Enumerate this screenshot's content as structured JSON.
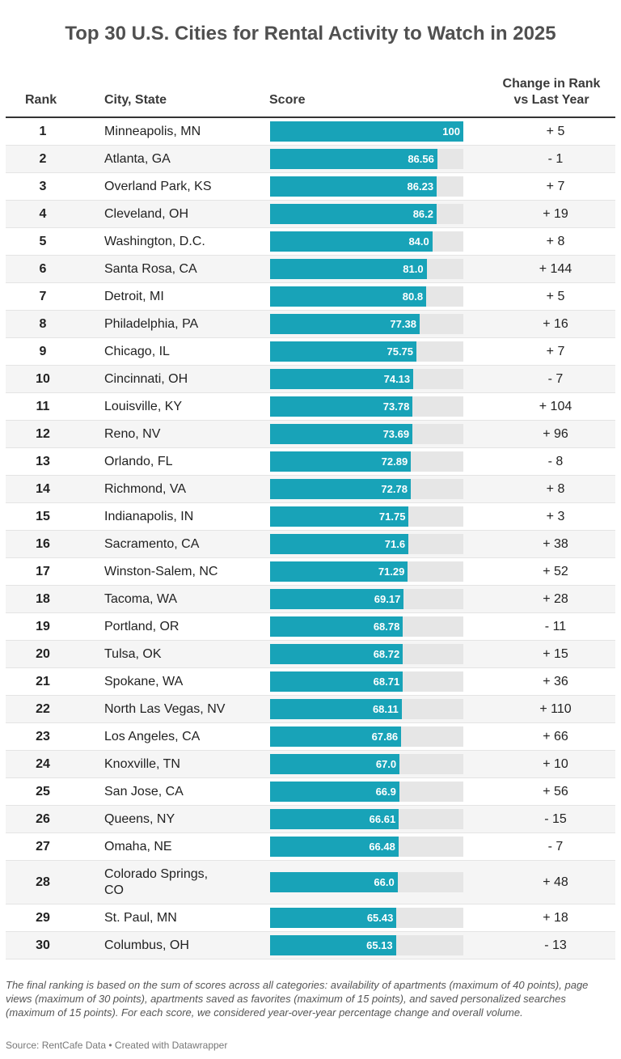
{
  "title": "Top 30 U.S. Cities for Rental Activity to Watch in 2025",
  "headers": {
    "rank": "Rank",
    "city": "City, State",
    "score": "Score",
    "change_line1": "Change in Rank",
    "change_line2": "vs Last Year"
  },
  "rows": [
    {
      "rank": "1",
      "city": "Minneapolis, MN",
      "score": 100,
      "score_label": "100",
      "change": "+ 5"
    },
    {
      "rank": "2",
      "city": "Atlanta, GA",
      "score": 86.56,
      "score_label": "86.56",
      "change": "- 1"
    },
    {
      "rank": "3",
      "city": "Overland Park, KS",
      "score": 86.23,
      "score_label": "86.23",
      "change": "+ 7"
    },
    {
      "rank": "4",
      "city": "Cleveland, OH",
      "score": 86.2,
      "score_label": "86.2",
      "change": "+ 19"
    },
    {
      "rank": "5",
      "city": "Washington, D.C.",
      "score": 84.0,
      "score_label": "84.0",
      "change": "+ 8"
    },
    {
      "rank": "6",
      "city": "Santa Rosa, CA",
      "score": 81.0,
      "score_label": "81.0",
      "change": "+ 144"
    },
    {
      "rank": "7",
      "city": "Detroit, MI",
      "score": 80.8,
      "score_label": "80.8",
      "change": "+ 5"
    },
    {
      "rank": "8",
      "city": "Philadelphia, PA",
      "score": 77.38,
      "score_label": "77.38",
      "change": "+ 16"
    },
    {
      "rank": "9",
      "city": "Chicago, IL",
      "score": 75.75,
      "score_label": "75.75",
      "change": "+ 7"
    },
    {
      "rank": "10",
      "city": "Cincinnati, OH",
      "score": 74.13,
      "score_label": "74.13",
      "change": "- 7"
    },
    {
      "rank": "11",
      "city": "Louisville, KY",
      "score": 73.78,
      "score_label": "73.78",
      "change": "+ 104"
    },
    {
      "rank": "12",
      "city": "Reno, NV",
      "score": 73.69,
      "score_label": "73.69",
      "change": "+ 96"
    },
    {
      "rank": "13",
      "city": "Orlando, FL",
      "score": 72.89,
      "score_label": "72.89",
      "change": "- 8"
    },
    {
      "rank": "14",
      "city": "Richmond, VA",
      "score": 72.78,
      "score_label": "72.78",
      "change": "+ 8"
    },
    {
      "rank": "15",
      "city": "Indianapolis, IN",
      "score": 71.75,
      "score_label": "71.75",
      "change": "+ 3"
    },
    {
      "rank": "16",
      "city": "Sacramento, CA",
      "score": 71.6,
      "score_label": "71.6",
      "change": "+ 38"
    },
    {
      "rank": "17",
      "city": "Winston-Salem, NC",
      "score": 71.29,
      "score_label": "71.29",
      "change": "+ 52"
    },
    {
      "rank": "18",
      "city": "Tacoma, WA",
      "score": 69.17,
      "score_label": "69.17",
      "change": "+ 28"
    },
    {
      "rank": "19",
      "city": "Portland, OR",
      "score": 68.78,
      "score_label": "68.78",
      "change": "- 11"
    },
    {
      "rank": "20",
      "city": "Tulsa, OK",
      "score": 68.72,
      "score_label": "68.72",
      "change": "+ 15"
    },
    {
      "rank": "21",
      "city": "Spokane, WA",
      "score": 68.71,
      "score_label": "68.71",
      "change": "+ 36"
    },
    {
      "rank": "22",
      "city": "North Las Vegas, NV",
      "score": 68.11,
      "score_label": "68.11",
      "change": "+ 110"
    },
    {
      "rank": "23",
      "city": "Los Angeles, CA",
      "score": 67.86,
      "score_label": "67.86",
      "change": "+ 66"
    },
    {
      "rank": "24",
      "city": "Knoxville, TN",
      "score": 67.0,
      "score_label": "67.0",
      "change": "+ 10"
    },
    {
      "rank": "25",
      "city": "San Jose, CA",
      "score": 66.9,
      "score_label": "66.9",
      "change": "+ 56"
    },
    {
      "rank": "26",
      "city": "Queens, NY",
      "score": 66.61,
      "score_label": "66.61",
      "change": "- 15"
    },
    {
      "rank": "27",
      "city": "Omaha, NE",
      "score": 66.48,
      "score_label": "66.48",
      "change": "- 7"
    },
    {
      "rank": "28",
      "city": "Colorado Springs, CO",
      "score": 66.0,
      "score_label": "66.0",
      "change": "+ 48"
    },
    {
      "rank": "29",
      "city": "St. Paul, MN",
      "score": 65.43,
      "score_label": "65.43",
      "change": "+ 18"
    },
    {
      "rank": "30",
      "city": "Columbus, OH",
      "score": 65.13,
      "score_label": "65.13",
      "change": "- 13"
    }
  ],
  "note": "The final ranking is based on the sum of scores across all categories: availability of apartments (maximum of 40 points), page views (maximum of 30 points), apartments saved as favorites (maximum of 15 points), and saved personalized searches (maximum of 15 points). For each score, we considered year-over-year percentage change and overall volume.",
  "source": "Source: RentCafe Data • Created with Datawrapper",
  "colors": {
    "bar": "#18a3b8",
    "bar_track": "#e6e6e6",
    "row_alt": "#f5f5f5"
  },
  "chart_data": {
    "type": "table",
    "title": "Top 30 U.S. Cities for Rental Activity to Watch in 2025",
    "columns": [
      "Rank",
      "City, State",
      "Score",
      "Change in Rank vs Last Year"
    ],
    "categories": [
      "Minneapolis, MN",
      "Atlanta, GA",
      "Overland Park, KS",
      "Cleveland, OH",
      "Washington, D.C.",
      "Santa Rosa, CA",
      "Detroit, MI",
      "Philadelphia, PA",
      "Chicago, IL",
      "Cincinnati, OH",
      "Louisville, KY",
      "Reno, NV",
      "Orlando, FL",
      "Richmond, VA",
      "Indianapolis, IN",
      "Sacramento, CA",
      "Winston-Salem, NC",
      "Tacoma, WA",
      "Portland, OR",
      "Tulsa, OK",
      "Spokane, WA",
      "North Las Vegas, NV",
      "Los Angeles, CA",
      "Knoxville, TN",
      "San Jose, CA",
      "Queens, NY",
      "Omaha, NE",
      "Colorado Springs, CO",
      "St. Paul, MN",
      "Columbus, OH"
    ],
    "series": [
      {
        "name": "Score",
        "values": [
          100,
          86.56,
          86.23,
          86.2,
          84.0,
          81.0,
          80.8,
          77.38,
          75.75,
          74.13,
          73.78,
          73.69,
          72.89,
          72.78,
          71.75,
          71.6,
          71.29,
          69.17,
          68.78,
          68.72,
          68.71,
          68.11,
          67.86,
          67.0,
          66.9,
          66.61,
          66.48,
          66.0,
          65.43,
          65.13
        ]
      },
      {
        "name": "Change in Rank vs Last Year",
        "values": [
          5,
          -1,
          7,
          19,
          8,
          144,
          5,
          16,
          7,
          -7,
          104,
          96,
          -8,
          8,
          3,
          38,
          52,
          28,
          -11,
          15,
          36,
          110,
          66,
          10,
          56,
          -15,
          -7,
          48,
          18,
          -13
        ]
      }
    ],
    "bar_range": [
      0,
      100
    ]
  }
}
